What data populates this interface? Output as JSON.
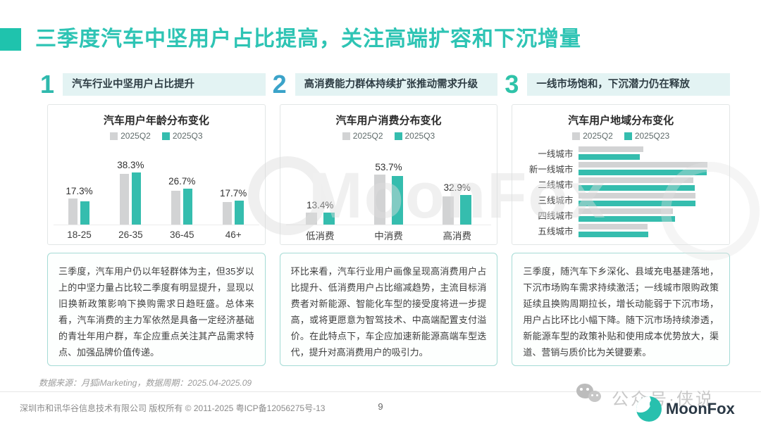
{
  "page": {
    "title": "三季度汽车中坚用户占比提高，关注高端扩容和下沉增量"
  },
  "sections": [
    {
      "number": "1",
      "header": "汽车行业中坚用户占比提升",
      "body": "三季度，汽车用户仍以年轻群体为主，但35岁以上的中坚力量占比较二季度有明显提升，显现以旧换新政策影响下换购需求日趋旺盛。总体来看，汽车消费的主力军依然是具备一定经济基础的青壮年用户群，车企应重点关注其产品需求特点、加强品牌价值传递。"
    },
    {
      "number": "2",
      "header": "高消费能力群体持续扩张推动需求升级",
      "body": "环比来看，汽车行业用户画像呈现高消费用户占比提升、低消费用户占比缩减趋势，主流目标消费者对新能源、智能化车型的接受度将进一步提高，或将更愿意为智驾技术、中高端配置支付溢价。在此特点下，车企应加速新能源高端车型迭代，提升对高消费用户的吸引力。"
    },
    {
      "number": "3",
      "header": "一线市场饱和，下沉潜力仍在释放",
      "body": "三季度，随汽车下乡深化、县域充电基建落地，下沉市场购车需求持续激活；一线城市限购政策延续且换购周期拉长，增长动能弱于下沉市场，用户占比环比小幅下降。随下沉市场持续渗透，新能源车型的政策补贴和使用成本优势放大，渠道、营销与质价比为关键要素。"
    }
  ],
  "chart_data": [
    {
      "type": "bar",
      "title": "汽车用户年龄分布变化",
      "categories": [
        "18-25",
        "26-35",
        "36-45",
        "46+"
      ],
      "series": [
        {
          "name": "2025Q2",
          "color": "#d2d3d4",
          "values": [
            19.6,
            36.9,
            25.0,
            17.0
          ],
          "values_estimated": true
        },
        {
          "name": "2025Q3",
          "color": "#35bdae",
          "values": [
            17.3,
            38.3,
            26.7,
            17.7
          ],
          "data_labels": [
            "17.3%",
            "38.3%",
            "26.7%",
            "17.7%"
          ]
        }
      ],
      "ylim": [
        0,
        60
      ],
      "legend_position": "top",
      "grid": false
    },
    {
      "type": "bar",
      "title": "汽车用户消费分布变化",
      "categories": [
        "低消费",
        "中消费",
        "高消费"
      ],
      "series": [
        {
          "name": "2025Q2",
          "color": "#d2d3d4",
          "values": [
            13.9,
            55.0,
            31.1
          ],
          "values_estimated": true
        },
        {
          "name": "2025Q3",
          "color": "#35bdae",
          "values": [
            13.4,
            53.7,
            32.9
          ],
          "data_labels": [
            "13.4%",
            "53.7%",
            "32.9%"
          ]
        }
      ],
      "ylim": [
        0,
        90
      ],
      "legend_position": "top",
      "grid": false
    },
    {
      "type": "bar-horizontal",
      "title": "汽车用户地域分布变化",
      "categories": [
        "一线城市",
        "新一线城市",
        "二线城市",
        "三线城市",
        "四线城市",
        "五线城市"
      ],
      "series": [
        {
          "name": "2025Q2",
          "color": "#d2d3d4",
          "values": [
            11.0,
            21.9,
            19.5,
            19.9,
            16.0,
            11.7
          ],
          "values_estimated": true
        },
        {
          "name": "2025Q23",
          "color": "#35bdae",
          "values": [
            10.4,
            21.8,
            19.8,
            19.9,
            16.4,
            11.9
          ],
          "values_estimated": true
        }
      ],
      "xlim": [
        0,
        24
      ],
      "legend_position": "top",
      "grid": false
    }
  ],
  "source_note": "数据来源：月狐iMarketing，数据周期：2025.04-2025.09",
  "footer": {
    "copyright": "深圳市和讯华谷信息技术有限公司 版权所有 © 2011-2025 粤ICP备12056275号-13",
    "page_number": "9",
    "wechat_label": "公众号·侠说",
    "brand": "MoonFox"
  },
  "watermark": {
    "text": "MoonFox"
  },
  "colors": {
    "accent": "#2ec4b4",
    "title_square": "#1fc3ad",
    "q2_bar": "#d2d3d4",
    "q3_bar": "#35bdae",
    "header_band_bg": "#e3f3f3",
    "text_box_border": "#a5dbd5",
    "number_1": "#2fb9ad",
    "number_2": "#3ba3c9",
    "number_3": "#2fc3a9"
  }
}
